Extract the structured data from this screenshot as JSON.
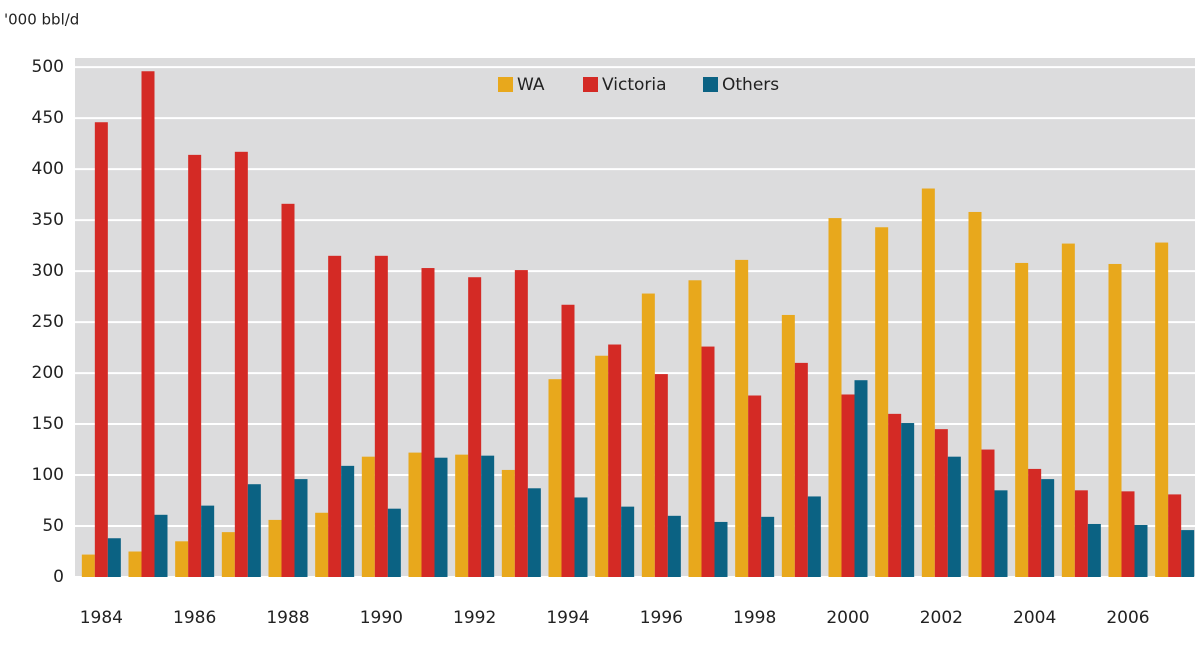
{
  "chart_data": {
    "type": "bar",
    "y_label": "'000 bbl/d",
    "categories": [
      "1984",
      null,
      "1986",
      null,
      "1988",
      null,
      "1990",
      null,
      "1992",
      null,
      "1994",
      null,
      "1996",
      null,
      "1998",
      null,
      "2000",
      null,
      "2002",
      null,
      "2004",
      null,
      "2006",
      null
    ],
    "series": [
      {
        "name": "WA",
        "color": "#e8a81c",
        "values": [
          22,
          25,
          35,
          44,
          56,
          63,
          118,
          122,
          120,
          105,
          194,
          217,
          278,
          291,
          311,
          257,
          352,
          343,
          381,
          358,
          308,
          327,
          307,
          328
        ]
      },
      {
        "name": "Victoria",
        "color": "#d42a25",
        "values": [
          446,
          496,
          414,
          417,
          366,
          315,
          315,
          303,
          294,
          301,
          267,
          228,
          199,
          226,
          178,
          210,
          179,
          160,
          145,
          125,
          106,
          85,
          84,
          81
        ]
      },
      {
        "name": "Others",
        "color": "#0b6283",
        "values": [
          38,
          61,
          70,
          91,
          96,
          109,
          67,
          117,
          119,
          87,
          78,
          69,
          60,
          54,
          59,
          79,
          193,
          151,
          118,
          85,
          96,
          52,
          51,
          46
        ]
      }
    ],
    "ylim": [
      0,
      509
    ],
    "yticks": [
      0,
      50,
      100,
      150,
      200,
      250,
      300,
      350,
      400,
      450,
      500
    ],
    "grid": true,
    "legend": "top"
  }
}
